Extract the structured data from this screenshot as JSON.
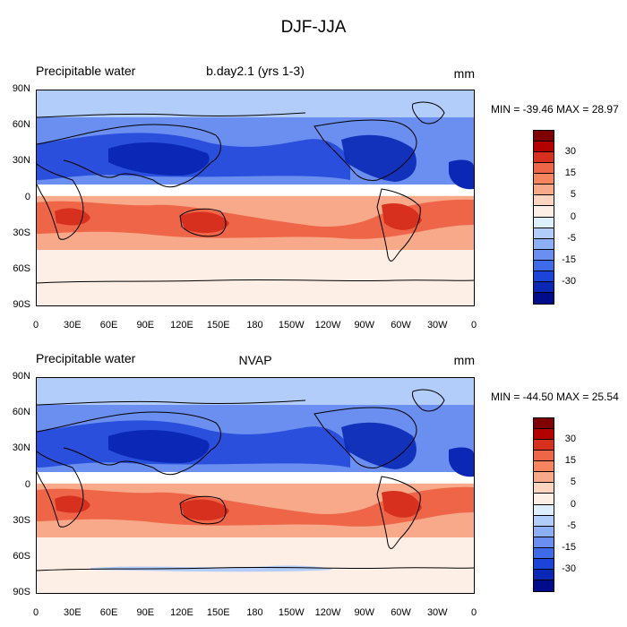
{
  "figure": {
    "title": "DJF-JJA"
  },
  "panels": [
    {
      "id": "model",
      "left_title": "Precipitable water",
      "center_title": "b.day2.1 (yrs 1-3)",
      "units": "mm",
      "stats": "MIN = -39.46 MAX =  28.97"
    },
    {
      "id": "obs",
      "left_title": "Precipitable water",
      "center_title": "NVAP",
      "units": "mm",
      "stats": "MIN = -44.50 MAX =  25.54"
    }
  ],
  "axes": {
    "lat_labels": [
      "90N",
      "60N",
      "30N",
      "0",
      "30S",
      "60S",
      "90S"
    ],
    "lon_labels": [
      "0",
      "30E",
      "60E",
      "90E",
      "120E",
      "150E",
      "180",
      "150W",
      "120W",
      "90W",
      "60W",
      "30W",
      "0"
    ]
  },
  "colorbar": {
    "colors": [
      "#7f0000",
      "#b30000",
      "#d7301f",
      "#ef6548",
      "#f4855f",
      "#f7a98a",
      "#fcd4bf",
      "#fdeee6",
      "#ddeeff",
      "#b3cdfa",
      "#8db0f5",
      "#6a8ff0",
      "#3f6ae8",
      "#1d44d8",
      "#0a28b5",
      "#000c8a"
    ],
    "labels": [
      "30",
      "15",
      "5",
      "0",
      "-5",
      "-15",
      "-30"
    ]
  },
  "map_colors": {
    "ocean_south": "#fdeee6",
    "equator_white": "#ffffff",
    "light_blue": "#b3cdfa",
    "mid_blue": "#6a8ff0",
    "deep_blue": "#1d44d8",
    "dark_blue": "#0a28b5",
    "salmon": "#f7a98a",
    "orange": "#ef6548",
    "red": "#d7301f"
  }
}
